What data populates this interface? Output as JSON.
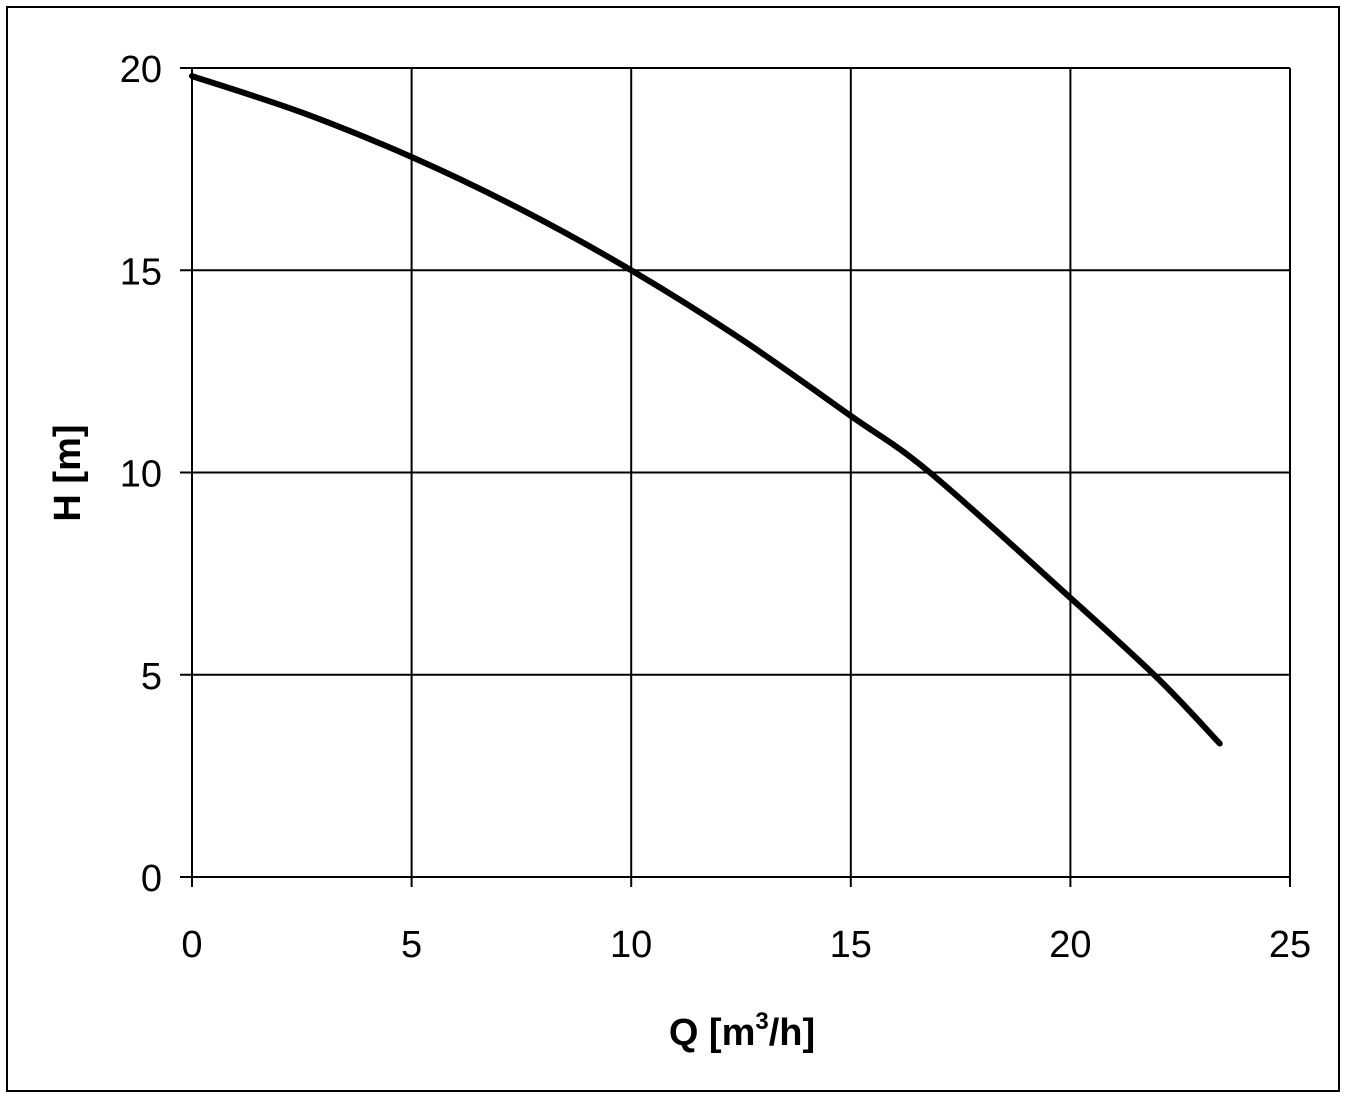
{
  "chart_data": {
    "type": "line",
    "title": "",
    "xlabel": {
      "prefix": "Q [m",
      "superscript": "3",
      "suffix": "/h]"
    },
    "ylabel": "H [m]",
    "xlim": [
      0,
      25
    ],
    "ylim": [
      0,
      20
    ],
    "x_ticks": [
      0,
      5,
      10,
      15,
      20,
      25
    ],
    "y_ticks": [
      0,
      5,
      10,
      15,
      20
    ],
    "grid": true,
    "legend": "none",
    "line_color": "#000000",
    "series": [
      {
        "x": [
          0,
          2.5,
          5,
          7.5,
          10,
          12.5,
          15,
          16.8,
          20,
          22,
          23.4
        ],
        "y": [
          19.8,
          18.9,
          17.8,
          16.5,
          15.0,
          13.3,
          11.4,
          10.0,
          6.9,
          4.9,
          3.3
        ]
      }
    ]
  }
}
